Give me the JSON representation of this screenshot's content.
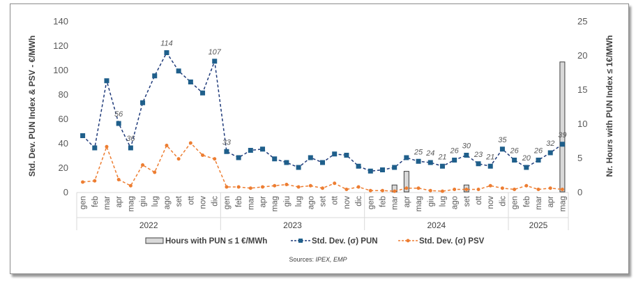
{
  "chart_data": {
    "type": "combo",
    "left_axis": {
      "label": "Std. Dev.  PUN Index & PSV - €/MWh",
      "range": [
        0,
        140
      ],
      "ticks": [
        "0",
        "20",
        "40",
        "60",
        "80",
        "100",
        "120",
        "140"
      ]
    },
    "right_axis": {
      "label": "Nr. Hours with PUN Index  ≤ 1€/MWh",
      "range": [
        0,
        25
      ],
      "ticks": [
        "0",
        "5",
        "10",
        "15",
        "20",
        "25"
      ]
    },
    "years": [
      {
        "label": "2022",
        "months": 12
      },
      {
        "label": "2023",
        "months": 12
      },
      {
        "label": "2024",
        "months": 12
      },
      {
        "label": "2025",
        "months": 5
      }
    ],
    "categories": [
      "gen",
      "feb",
      "mar",
      "apr",
      "mag",
      "giu",
      "lug",
      "ago",
      "set",
      "ott",
      "nov",
      "dic",
      "gen",
      "feb",
      "mar",
      "apr",
      "mag",
      "giu",
      "lug",
      "ago",
      "set",
      "ott",
      "nov",
      "dic",
      "gen",
      "feb",
      "mar",
      "apr",
      "mag",
      "giu",
      "lug",
      "ago",
      "set",
      "ott",
      "nov",
      "dic",
      "gen",
      "feb",
      "mar",
      "apr",
      "mag"
    ],
    "series": [
      {
        "name": "Hours with PUN ≤ 1 €/MWh",
        "type": "bar",
        "axis": "right",
        "color": "#d9d9d9",
        "values": [
          0,
          0,
          0,
          0,
          0,
          0,
          0,
          0,
          0,
          0,
          0,
          0,
          0,
          0,
          0,
          0,
          0,
          0,
          0,
          0,
          0,
          0,
          0,
          0,
          0,
          0,
          1,
          3,
          0,
          0,
          0,
          0,
          1,
          0,
          0,
          0,
          0,
          0,
          0,
          0,
          19
        ]
      },
      {
        "name": "Std. Dev. (σ) PUN",
        "type": "line",
        "axis": "left",
        "color": "#1f3a7a",
        "marker_color": "#1f5f8b",
        "values": [
          46,
          36,
          91,
          56,
          36,
          73,
          95,
          114,
          99,
          90,
          81,
          107,
          33,
          28,
          34,
          35,
          27,
          24,
          20,
          28,
          24,
          31,
          30,
          21,
          17,
          18,
          20,
          28,
          25,
          24,
          21,
          26,
          30,
          23,
          21,
          35,
          26,
          20,
          26,
          32,
          39
        ],
        "labels": [
          null,
          null,
          null,
          "56",
          "36",
          null,
          null,
          "114",
          null,
          null,
          null,
          "107",
          "33",
          null,
          null,
          null,
          null,
          null,
          null,
          null,
          null,
          null,
          null,
          null,
          null,
          null,
          null,
          null,
          "25",
          "24",
          "21",
          "26",
          "30",
          "23",
          "21",
          "35",
          "26",
          "20",
          "26",
          "32",
          "39"
        ]
      },
      {
        "name": "Std. Dev. (σ) PSV",
        "type": "line",
        "axis": "left",
        "color": "#ed7d31",
        "values": [
          8,
          9,
          37,
          10,
          5,
          22,
          16,
          38,
          27,
          40,
          30,
          27,
          4,
          4,
          3,
          4,
          5,
          6,
          4,
          5,
          3,
          7,
          2,
          4,
          1,
          1,
          0.5,
          3,
          3,
          1,
          0.5,
          2,
          2,
          2,
          5,
          3,
          2,
          5,
          2,
          3,
          2
        ]
      }
    ],
    "legend": "bottom",
    "grid": false
  },
  "source": {
    "prefix": "Sources: ",
    "names": "IPEX, EMP"
  }
}
